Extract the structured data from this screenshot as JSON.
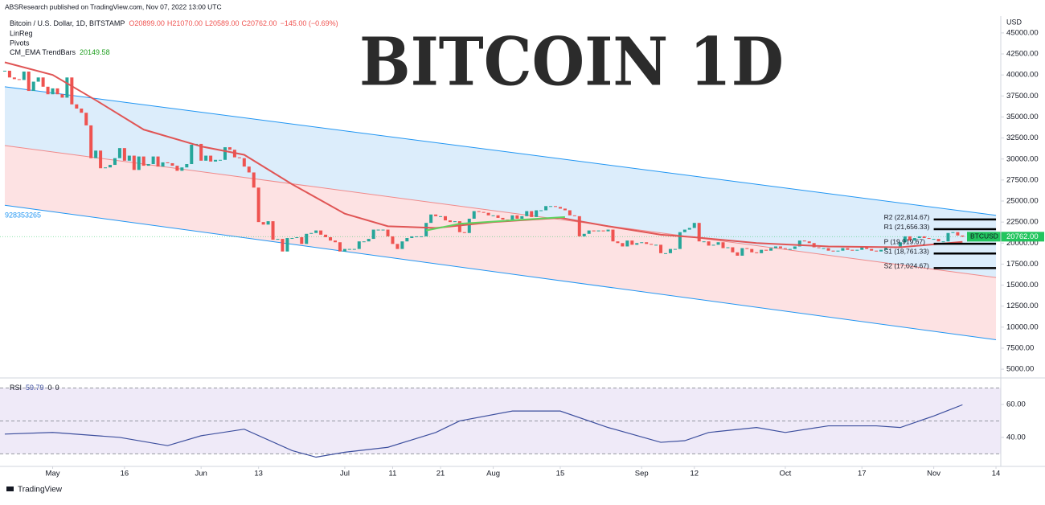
{
  "header": {
    "publisher": "ABSResearch published on TradingView.com, Nov 07, 2022 13:00 UTC",
    "symbol": "Bitcoin / U.S. Dollar, 1D, BITSTAMP",
    "ohlc": [
      "O20899.00",
      "H21070.00",
      "L20589.00",
      "C20762.00",
      "−145.00 (−0.69%)"
    ],
    "indicators": [
      "LinReg",
      "Pivots",
      "CM_EMA TrendBars"
    ],
    "ema_label": "20149.58",
    "title": "BITCOIN 1D",
    "currency": "USD"
  },
  "footer": "TradingView",
  "chart_data": [
    {
      "type": "candlestick",
      "up_color": "#26a69a",
      "down_color": "#ef5350",
      "xlim": [
        "2022-04-20",
        "2022-11-15"
      ],
      "ylim": [
        4150,
        47000
      ],
      "yticks": [
        {
          "value": 5000,
          "label": "5000.00"
        },
        {
          "value": 7500,
          "label": "7500.00"
        },
        {
          "value": 10000,
          "label": "10000.00"
        },
        {
          "value": 12500,
          "label": "12500.00"
        },
        {
          "value": 15000,
          "label": "15000.00"
        },
        {
          "value": 17500,
          "label": "17500.00"
        },
        {
          "value": 20000,
          "label": "20000.00"
        },
        {
          "value": 22500,
          "label": "22500.00"
        },
        {
          "value": 25000,
          "label": "25000.00"
        },
        {
          "value": 27500,
          "label": "27500.00"
        },
        {
          "value": 30000,
          "label": "30000.00"
        },
        {
          "value": 32500,
          "label": "32500.00"
        },
        {
          "value": 35000,
          "label": "35000.00"
        },
        {
          "value": 37500,
          "label": "37500.00"
        },
        {
          "value": 40000,
          "label": "40000.00"
        },
        {
          "value": 42500,
          "label": "42500.00"
        },
        {
          "value": 45000,
          "label": "45000.00"
        }
      ],
      "x": [
        "2022-04-21",
        "2022-04-22",
        "2022-04-23",
        "2022-04-24",
        "2022-04-25",
        "2022-04-26",
        "2022-04-27",
        "2022-04-28",
        "2022-04-29",
        "2022-04-30",
        "2022-05-01",
        "2022-05-02",
        "2022-05-03",
        "2022-05-04",
        "2022-05-05",
        "2022-05-06",
        "2022-05-07",
        "2022-05-08",
        "2022-05-09",
        "2022-05-10",
        "2022-05-11",
        "2022-05-12",
        "2022-05-13",
        "2022-05-14",
        "2022-05-15",
        "2022-05-16",
        "2022-05-17",
        "2022-05-18",
        "2022-05-19",
        "2022-05-20",
        "2022-05-21",
        "2022-05-22",
        "2022-05-23",
        "2022-05-24",
        "2022-05-25",
        "2022-05-26",
        "2022-05-27",
        "2022-05-28",
        "2022-05-29",
        "2022-05-30",
        "2022-05-31",
        "2022-06-01",
        "2022-06-02",
        "2022-06-03",
        "2022-06-04",
        "2022-06-05",
        "2022-06-06",
        "2022-06-07",
        "2022-06-08",
        "2022-06-09",
        "2022-06-10",
        "2022-06-11",
        "2022-06-12",
        "2022-06-13",
        "2022-06-14",
        "2022-06-15",
        "2022-06-16",
        "2022-06-17",
        "2022-06-18",
        "2022-06-19",
        "2022-06-20",
        "2022-06-21",
        "2022-06-22",
        "2022-06-23",
        "2022-06-24",
        "2022-06-25",
        "2022-06-26",
        "2022-06-27",
        "2022-06-28",
        "2022-06-29",
        "2022-06-30",
        "2022-07-01",
        "2022-07-02",
        "2022-07-03",
        "2022-07-04",
        "2022-07-05",
        "2022-07-06",
        "2022-07-07",
        "2022-07-08",
        "2022-07-09",
        "2022-07-10",
        "2022-07-11",
        "2022-07-12",
        "2022-07-13",
        "2022-07-14",
        "2022-07-15",
        "2022-07-16",
        "2022-07-17",
        "2022-07-18",
        "2022-07-19",
        "2022-07-20",
        "2022-07-21",
        "2022-07-22",
        "2022-07-23",
        "2022-07-24",
        "2022-07-25",
        "2022-07-26",
        "2022-07-27",
        "2022-07-28",
        "2022-07-29",
        "2022-07-30",
        "2022-07-31",
        "2022-08-01",
        "2022-08-02",
        "2022-08-03",
        "2022-08-04",
        "2022-08-05",
        "2022-08-06",
        "2022-08-07",
        "2022-08-08",
        "2022-08-09",
        "2022-08-10",
        "2022-08-11",
        "2022-08-12",
        "2022-08-13",
        "2022-08-14",
        "2022-08-15",
        "2022-08-16",
        "2022-08-17",
        "2022-08-18",
        "2022-08-19",
        "2022-08-20",
        "2022-08-21",
        "2022-08-22",
        "2022-08-23",
        "2022-08-24",
        "2022-08-25",
        "2022-08-26",
        "2022-08-27",
        "2022-08-28",
        "2022-08-29",
        "2022-08-30",
        "2022-08-31",
        "2022-09-01",
        "2022-09-02",
        "2022-09-03",
        "2022-09-04",
        "2022-09-05",
        "2022-09-06",
        "2022-09-07",
        "2022-09-08",
        "2022-09-09",
        "2022-09-10",
        "2022-09-11",
        "2022-09-12",
        "2022-09-13",
        "2022-09-14",
        "2022-09-15",
        "2022-09-16",
        "2022-09-17",
        "2022-09-18",
        "2022-09-19",
        "2022-09-20",
        "2022-09-21",
        "2022-09-22",
        "2022-09-23",
        "2022-09-24",
        "2022-09-25",
        "2022-09-26",
        "2022-09-27",
        "2022-09-28",
        "2022-09-29",
        "2022-09-30",
        "2022-10-01",
        "2022-10-02",
        "2022-10-03",
        "2022-10-04",
        "2022-10-05",
        "2022-10-06",
        "2022-10-07",
        "2022-10-08",
        "2022-10-09",
        "2022-10-10",
        "2022-10-11",
        "2022-10-12",
        "2022-10-13",
        "2022-10-14",
        "2022-10-15",
        "2022-10-16",
        "2022-10-17",
        "2022-10-18",
        "2022-10-19",
        "2022-10-20",
        "2022-10-21",
        "2022-10-22",
        "2022-10-23",
        "2022-10-24",
        "2022-10-25",
        "2022-10-26",
        "2022-10-27",
        "2022-10-28",
        "2022-10-29",
        "2022-10-30",
        "2022-10-31",
        "2022-11-01",
        "2022-11-02",
        "2022-11-03",
        "2022-11-04",
        "2022-11-05",
        "2022-11-06",
        "2022-11-07"
      ],
      "close": [
        40500,
        39700,
        39500,
        39400,
        40400,
        38100,
        39200,
        39700,
        38600,
        37700,
        38400,
        37700,
        37300,
        39700,
        36500,
        36000,
        35500,
        34000,
        30100,
        31000,
        28900,
        29000,
        29300,
        30100,
        31300,
        29800,
        30400,
        28700,
        30300,
        29200,
        29400,
        30300,
        29100,
        29600,
        29500,
        29200,
        28600,
        29000,
        29400,
        31700,
        31800,
        29800,
        30400,
        29700,
        29900,
        29900,
        31400,
        31100,
        30200,
        30100,
        29100,
        28400,
        26600,
        22500,
        22200,
        22600,
        20400,
        20500,
        19000,
        20600,
        20600,
        20700,
        19900,
        21100,
        21200,
        21500,
        21000,
        20700,
        20300,
        20100,
        19000,
        19300,
        19300,
        19300,
        20200,
        20200,
        20500,
        21600,
        21600,
        21600,
        20800,
        19900,
        19300,
        20200,
        20600,
        20800,
        20800,
        20800,
        22400,
        23400,
        23200,
        23200,
        22700,
        22500,
        22600,
        21300,
        21200,
        22900,
        23800,
        23700,
        23600,
        23300,
        23300,
        23000,
        22800,
        22600,
        23300,
        22900,
        23200,
        23800,
        23100,
        23900,
        23900,
        24400,
        24400,
        24300,
        24100,
        23900,
        23300,
        23200,
        20800,
        21100,
        21500,
        21400,
        21500,
        21400,
        21600,
        20200,
        20000,
        19600,
        20300,
        19800,
        20000,
        20100,
        19900,
        19800,
        19800,
        18800,
        18800,
        19300,
        19300,
        21300,
        21600,
        21800,
        22400,
        20200,
        20200,
        19700,
        19800,
        20100,
        19400,
        19500,
        18900,
        18500,
        19400,
        19300,
        18900,
        18800,
        19200,
        19100,
        19400,
        19600,
        19400,
        19300,
        19300,
        19600,
        20300,
        20200,
        20000,
        19500,
        19400,
        19400,
        19100,
        19000,
        19100,
        19400,
        19200,
        19100,
        19200,
        19600,
        19300,
        19100,
        19000,
        19200,
        19600,
        19600,
        19400,
        20100,
        20800,
        20300,
        20600,
        20800,
        20600,
        20500,
        20500,
        20200,
        20200,
        21200,
        21300,
        20900,
        20762
      ],
      "ema": {
        "color": "#e05555",
        "x": [
          "2022-04-21",
          "2022-05-01",
          "2022-05-10",
          "2022-05-20",
          "2022-06-01",
          "2022-06-10",
          "2022-06-20",
          "2022-07-01",
          "2022-07-10",
          "2022-07-20",
          "2022-08-01",
          "2022-08-15",
          "2022-08-25",
          "2022-09-05",
          "2022-09-12",
          "2022-09-25",
          "2022-10-10",
          "2022-10-25",
          "2022-11-07"
        ],
        "values": [
          41500,
          40000,
          37000,
          33500,
          31500,
          30500,
          27000,
          23500,
          22000,
          21800,
          22500,
          23000,
          22000,
          21000,
          20700,
          20000,
          19600,
          19500,
          20149.58
        ]
      },
      "trend": {
        "color": "#5fd35f",
        "x": [
          "2022-07-18",
          "2022-07-25",
          "2022-08-05",
          "2022-08-16"
        ],
        "values": [
          21500,
          22300,
          22700,
          23100
        ]
      },
      "channel": {
        "label": "928353265",
        "x": [
          "2022-04-21",
          "2022-11-14"
        ],
        "upper": [
          38600,
          23300
        ],
        "middle": [
          31600,
          15900
        ],
        "lower": [
          24500,
          8500
        ],
        "line_color": "#2196f3",
        "upper_fill": "#dcedfb",
        "lower_fill": "#fde2e3"
      },
      "pivots": {
        "x": [
          "2022-11-01",
          "2022-11-14"
        ],
        "levels": [
          {
            "label": "R2 (22,814.67)",
            "value": 22814.67
          },
          {
            "label": "R1 (21,656.33)",
            "value": 21656.33
          },
          {
            "label": "P (19,919.67)",
            "value": 19919.67
          },
          {
            "label": "S1 (18,761.33)",
            "value": 18761.33
          },
          {
            "label": "S2 (17,024.67)",
            "value": 17024.67
          }
        ]
      },
      "last_price": {
        "name": "BTCUSD",
        "value": 20762,
        "label": "20762.00",
        "color": "#22c55e"
      }
    },
    {
      "type": "line",
      "title": "RSI",
      "legend": [
        "59.79",
        "0",
        "0"
      ],
      "color": "#3d4f9e",
      "band_color": "#efeaf8",
      "xlim": [
        "2022-04-20",
        "2022-11-15"
      ],
      "ylim": [
        22.4,
        75.1
      ],
      "bands": [
        70,
        50,
        30
      ],
      "yticks": [
        {
          "value": 40,
          "label": "40.00"
        },
        {
          "value": 60,
          "label": "60.00"
        }
      ],
      "xticks": [
        {
          "value": "2022-05-01",
          "label": "May"
        },
        {
          "value": "2022-05-16",
          "label": "16"
        },
        {
          "value": "2022-06-01",
          "label": "Jun"
        },
        {
          "value": "2022-06-13",
          "label": "13"
        },
        {
          "value": "2022-07-01",
          "label": "Jul"
        },
        {
          "value": "2022-07-11",
          "label": "11"
        },
        {
          "value": "2022-07-21",
          "label": "21"
        },
        {
          "value": "2022-08-01",
          "label": "Aug"
        },
        {
          "value": "2022-08-15",
          "label": "15"
        },
        {
          "value": "2022-09-01",
          "label": "Sep"
        },
        {
          "value": "2022-09-12",
          "label": "12"
        },
        {
          "value": "2022-10-01",
          "label": "Oct"
        },
        {
          "value": "2022-10-17",
          "label": "17"
        },
        {
          "value": "2022-11-01",
          "label": "Nov"
        },
        {
          "value": "2022-11-14",
          "label": "14"
        }
      ],
      "x": [
        "2022-04-21",
        "2022-05-01",
        "2022-05-15",
        "2022-05-25",
        "2022-06-01",
        "2022-06-10",
        "2022-06-20",
        "2022-06-25",
        "2022-07-01",
        "2022-07-10",
        "2022-07-20",
        "2022-07-25",
        "2022-08-05",
        "2022-08-15",
        "2022-08-25",
        "2022-09-05",
        "2022-09-10",
        "2022-09-15",
        "2022-09-25",
        "2022-10-01",
        "2022-10-10",
        "2022-10-20",
        "2022-10-25",
        "2022-11-01",
        "2022-11-07"
      ],
      "values": [
        42,
        43,
        40,
        35,
        41,
        45,
        32,
        28,
        31,
        34,
        43,
        50,
        56,
        56,
        46,
        37,
        38,
        43,
        46,
        43,
        47,
        47,
        46,
        53,
        59.79
      ]
    }
  ]
}
